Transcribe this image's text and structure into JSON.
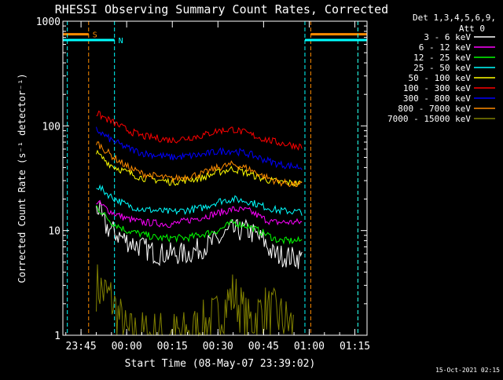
{
  "chart_data": {
    "type": "line",
    "title": "RHESSI Observing Summary Count Rates, Corrected",
    "xlabel": "Start Time (08-May-07 23:39:02)",
    "ylabel": "Corrected Count Rate (s⁻¹ detector⁻¹)",
    "y_scale": "log",
    "ylim": [
      1,
      1000
    ],
    "xlim": [
      "23:39:02",
      "01:19:00"
    ],
    "x_ticks": [
      "23:45",
      "00:00",
      "00:15",
      "00:30",
      "00:45",
      "01:00",
      "01:15"
    ],
    "y_ticks": [
      "1",
      "10",
      "100",
      "1000"
    ],
    "grid": false,
    "legend_position": "top-right-outside",
    "legend_header": [
      "Det 1,3,4,5,6,9,",
      "Att 0"
    ],
    "data_gaps": [
      {
        "start": "23:39:02",
        "end": "23:49:30"
      },
      {
        "start": "00:58:35",
        "end": "01:19:00"
      }
    ],
    "series": [
      {
        "name": "3 - 6 keV",
        "color": "#ffffff",
        "x": [
          "23:50",
          "23:53",
          "00:00",
          "00:10",
          "00:20",
          "00:30",
          "00:34",
          "00:40",
          "00:45",
          "00:48",
          "00:55",
          "00:58"
        ],
        "y": [
          18,
          11,
          8,
          6,
          6,
          8,
          10,
          10,
          8,
          6,
          5.5,
          5.5
        ]
      },
      {
        "name": "6 - 12 keV",
        "color": "#ff00ff",
        "x": [
          "23:50",
          "23:55",
          "00:00",
          "00:05",
          "00:15",
          "00:25",
          "00:35",
          "00:40",
          "00:45",
          "00:48",
          "00:55",
          "00:58"
        ],
        "y": [
          19,
          15,
          13,
          12,
          11.5,
          13.5,
          16,
          15.5,
          13,
          12,
          12,
          12
        ]
      },
      {
        "name": "12 - 25 keV",
        "color": "#00ff00",
        "x": [
          "23:50",
          "23:55",
          "00:00",
          "00:10",
          "00:20",
          "00:30",
          "00:35",
          "00:40",
          "00:45",
          "00:50",
          "00:58"
        ],
        "y": [
          17,
          12,
          10,
          8.5,
          8.5,
          10,
          12,
          11,
          9.5,
          8,
          8
        ]
      },
      {
        "name": "25 - 50 keV",
        "color": "#00ffff",
        "x": [
          "23:50",
          "23:55",
          "00:00",
          "00:05",
          "00:15",
          "00:25",
          "00:30",
          "00:35",
          "00:40",
          "00:45",
          "00:50",
          "00:58"
        ],
        "y": [
          27,
          21,
          17.5,
          16,
          15,
          16.5,
          19,
          20,
          19,
          17,
          15.5,
          15
        ]
      },
      {
        "name": "50 - 100 keV",
        "color": "#ffff00",
        "x": [
          "23:50",
          "23:55",
          "00:00",
          "00:05",
          "00:15",
          "00:25",
          "00:30",
          "00:35",
          "00:40",
          "00:45",
          "00:50",
          "00:58"
        ],
        "y": [
          55,
          42,
          36,
          32,
          29,
          32,
          36,
          39,
          35,
          31,
          29,
          28
        ]
      },
      {
        "name": "100 - 300 keV",
        "color": "#ff0000",
        "x": [
          "23:50",
          "23:55",
          "00:00",
          "00:05",
          "00:15",
          "00:25",
          "00:30",
          "00:35",
          "00:40",
          "00:45",
          "00:50",
          "00:58"
        ],
        "y": [
          132,
          110,
          92,
          80,
          73,
          81,
          90,
          93,
          84,
          75,
          69,
          63
        ]
      },
      {
        "name": "300 - 800 keV",
        "color": "#0000ff",
        "x": [
          "23:50",
          "23:55",
          "00:00",
          "00:05",
          "00:15",
          "00:25",
          "00:30",
          "00:35",
          "00:40",
          "00:45",
          "00:50",
          "00:58"
        ],
        "y": [
          92,
          73,
          62,
          55,
          50,
          53,
          57,
          58,
          54,
          48,
          43,
          40
        ]
      },
      {
        "name": "800 - 7000 keV",
        "color": "#ff8c00",
        "x": [
          "23:50",
          "23:55",
          "00:00",
          "00:05",
          "00:15",
          "00:25",
          "00:30",
          "00:35",
          "00:40",
          "00:45",
          "00:50",
          "00:58"
        ],
        "y": [
          70,
          52,
          41,
          35,
          31,
          35,
          40,
          43,
          39,
          33,
          29,
          27
        ]
      },
      {
        "name": "7000 - 15000 keV",
        "color": "#808000",
        "x": [
          "23:50",
          "23:55",
          "00:00",
          "00:10",
          "00:20",
          "00:30",
          "00:35",
          "00:40",
          "00:45",
          "00:50",
          "00:55"
        ],
        "y": [
          3,
          2.2,
          1.0,
          1.0,
          1.0,
          1.5,
          2.5,
          1.3,
          1.8,
          1.5,
          1.2
        ]
      }
    ],
    "flag_bars": [
      {
        "label": "S",
        "color": "#ff8c00",
        "level": 750,
        "spans": [
          [
            "23:39:02",
            "23:47:30"
          ],
          [
            "01:00:30",
            "01:19:00"
          ]
        ],
        "vlines": [
          "23:47:30",
          "01:00:30",
          "01:16:00"
        ]
      },
      {
        "label": "N",
        "color": "#00ffff",
        "level": 660,
        "spans": [
          [
            "23:39:02",
            "23:56:00"
          ],
          [
            "00:58:35",
            "01:19:00"
          ]
        ],
        "vlines": [
          "23:40:30",
          "23:56:00",
          "00:58:35",
          "01:16:00"
        ]
      }
    ],
    "timestamp": "15-Oct-2021 02:15"
  }
}
